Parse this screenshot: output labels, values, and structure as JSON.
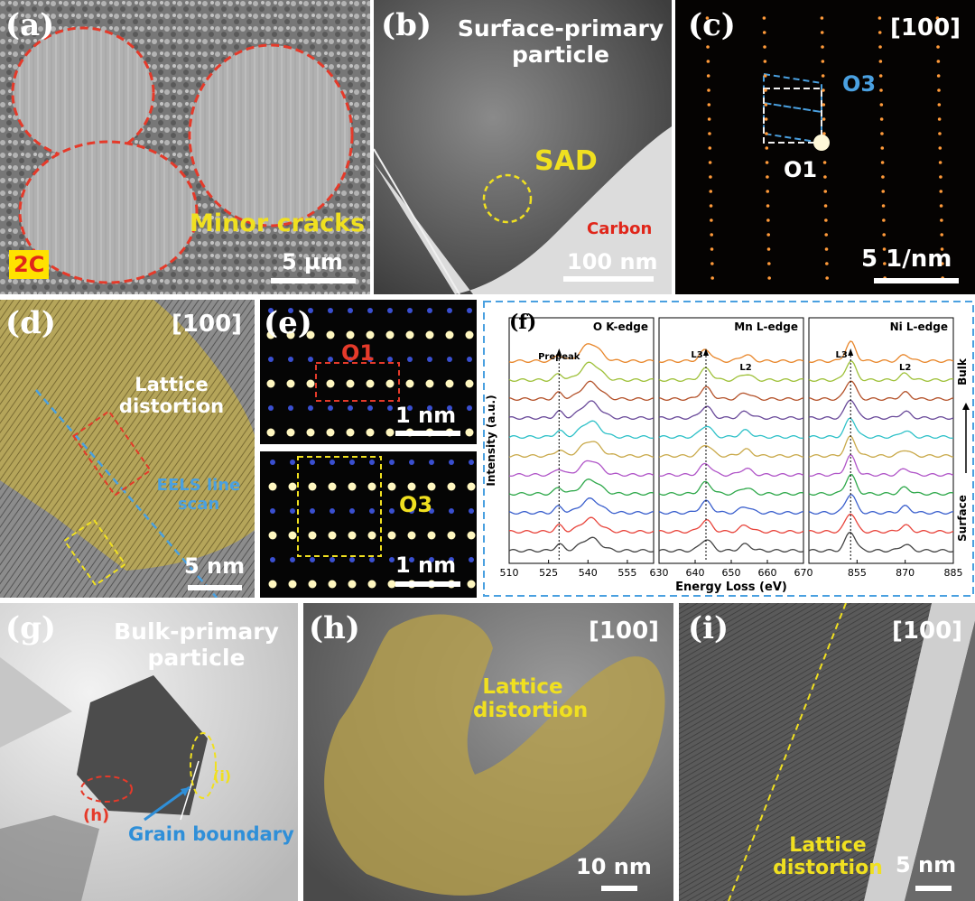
{
  "panels": {
    "a": {
      "label": "(a)",
      "badge": "2C",
      "annotation": "Minor cracks",
      "scale": "5 µm"
    },
    "b": {
      "label": "(b)",
      "title": "Surface-primary particle",
      "sad": "SAD",
      "carbon": "Carbon",
      "scale": "100 nm"
    },
    "c": {
      "label": "(c)",
      "zone": "[100]",
      "o3": "O3",
      "o1": "O1",
      "scale": "5 1/nm"
    },
    "d": {
      "label": "(d)",
      "zone": "[100]",
      "lattice": "Lattice distortion",
      "eels": "EELS line scan",
      "scale": "5 nm"
    },
    "e": {
      "label": "(e)",
      "o1": "O1",
      "o3": "O3",
      "scale_top": "1 nm",
      "scale_bottom": "1 nm"
    },
    "f": {
      "label": "(f)"
    },
    "g": {
      "label": "(g)",
      "title": "Bulk-primary particle",
      "marker_i": "(i)",
      "marker_h": "(h)",
      "grain": "Grain boundary"
    },
    "h": {
      "label": "(h)",
      "zone": "[100]",
      "lattice": "Lattice distortion",
      "scale": "10 nm"
    },
    "i": {
      "label": "(i)",
      "zone": "[100]",
      "lattice": "Lattice distortion",
      "scale": "5 nm"
    }
  },
  "chart_data": {
    "type": "line",
    "ylabel": "Intensity (a.u.)",
    "xlabel": "Energy Loss (eV)",
    "side_labels": {
      "top": "Bulk",
      "bottom": "Surface"
    },
    "series_colors": [
      "#444444",
      "#e8453c",
      "#3a5fcd",
      "#2ea84a",
      "#b055c8",
      "#c9a94a",
      "#2fc1c8",
      "#6a4a9a",
      "#b4522a",
      "#9fc13a",
      "#e8862a"
    ],
    "subplots": [
      {
        "title": "O K-edge",
        "xlim": [
          510,
          565
        ],
        "xticks": [
          510,
          525,
          540,
          555
        ],
        "peaks": {
          "Prepeak": 529,
          "main": 541
        },
        "marker": "Prepeak",
        "marker_x": 529
      },
      {
        "title": "Mn L-edge",
        "xlim": [
          630,
          670
        ],
        "xticks": [
          630,
          640,
          650,
          660,
          670
        ],
        "peaks": {
          "L3": 643,
          "L2": 654
        },
        "marker": "L3",
        "marker2": "L2",
        "marker_x": 643,
        "marker2_x": 654
      },
      {
        "title": "Ni L-edge",
        "xlim": [
          840,
          885
        ],
        "xticks": [
          855,
          870,
          885
        ],
        "peaks": {
          "L3": 853,
          "L2": 870
        },
        "marker": "L3",
        "marker2": "L2",
        "marker_x": 853,
        "marker2_x": 870
      }
    ]
  }
}
